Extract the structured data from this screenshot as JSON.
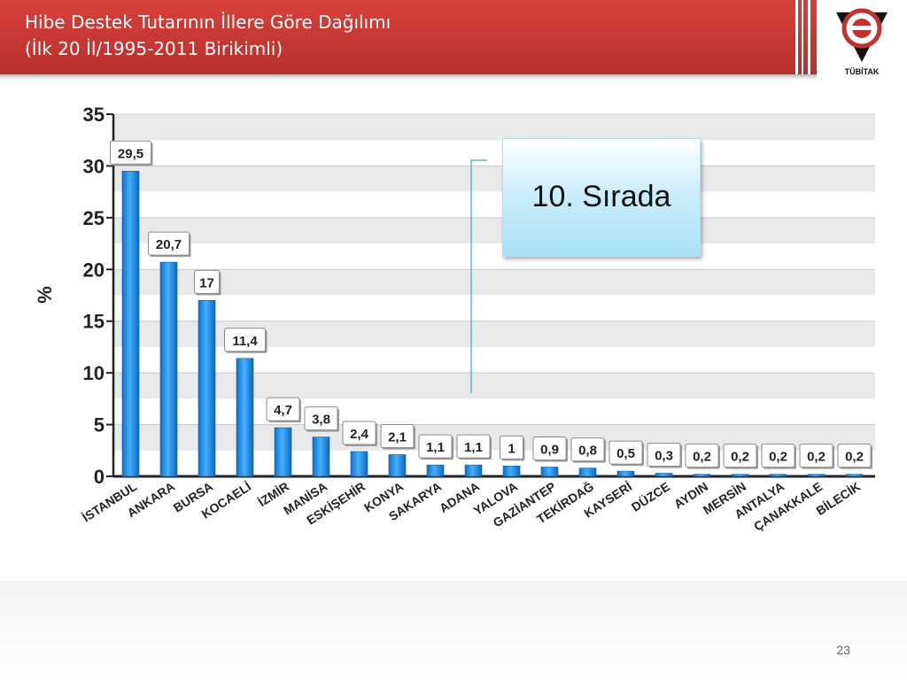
{
  "header": {
    "title_line1": "Hibe Destek Tutarının İllere Göre Dağılımı",
    "title_line2": "(İlk 20 İl/1995-2011 Birikimli)",
    "logo_text": "TÜBİTAK",
    "accent_color": "#c0322e"
  },
  "callout": {
    "text": "10. Sırada"
  },
  "page_number": "23",
  "chart_data": {
    "type": "bar",
    "ylabel": "%",
    "ylim": [
      0,
      35
    ],
    "yticks": [
      0,
      5,
      10,
      15,
      20,
      25,
      30,
      35
    ],
    "grid": true,
    "bar_color": "#1e8fe6",
    "categories": [
      "İSTANBUL",
      "ANKARA",
      "BURSA",
      "KOCAELİ",
      "İZMİR",
      "MANİSA",
      "ESKİŞEHİR",
      "KONYA",
      "SAKARYA",
      "ADANA",
      "YALOVA",
      "GAZİANTEP",
      "TEKİRDAĞ",
      "KAYSERİ",
      "DÜZCE",
      "AYDIN",
      "MERSİN",
      "ANTALYA",
      "ÇANAKKALE",
      "BİLECİK"
    ],
    "values": [
      29.5,
      20.7,
      17,
      11.4,
      4.7,
      3.8,
      2.4,
      2.1,
      1.1,
      1.1,
      1,
      0.9,
      0.8,
      0.5,
      0.3,
      0.2,
      0.2,
      0.2,
      0.2,
      0.2
    ],
    "data_labels": [
      "29,5",
      "20,7",
      "17",
      "11,4",
      "4,7",
      "3,8",
      "2,4",
      "2,1",
      "1,1",
      "1,1",
      "1",
      "0,9",
      "0,8",
      "0,5",
      "0,3",
      "0,2",
      "0,2",
      "0,2",
      "0,2",
      "0,2"
    ]
  }
}
